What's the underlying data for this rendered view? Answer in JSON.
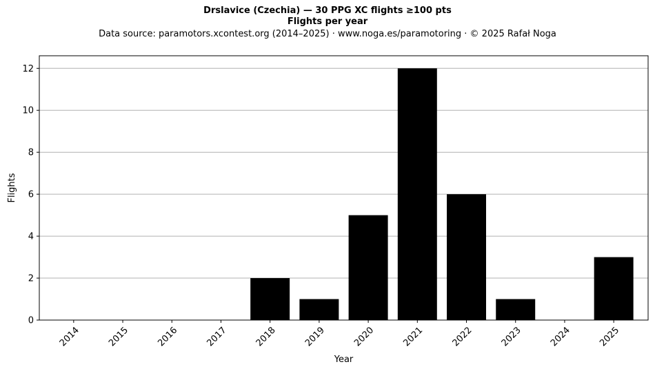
{
  "chart_data": {
    "type": "bar",
    "title": "Drslavice (Czechia)  —  30 PPG XC flights ≥100 pts",
    "subtitle": "Flights per year",
    "source_note": "Data source: paramotors.xcontest.org (2014–2025)  ·  www.noga.es/paramotoring  ·  © 2025 Rafał Noga",
    "xlabel": "Year",
    "ylabel": "Flights",
    "categories": [
      "2014",
      "2015",
      "2016",
      "2017",
      "2018",
      "2019",
      "2020",
      "2021",
      "2022",
      "2023",
      "2024",
      "2025"
    ],
    "values": [
      0,
      0,
      0,
      0,
      2,
      1,
      5,
      12,
      6,
      1,
      0,
      3
    ],
    "ylim": [
      0,
      12.6
    ],
    "yticks": [
      0,
      2,
      4,
      6,
      8,
      10,
      12
    ],
    "grid": "y",
    "bar_color": "#000000",
    "grid_color": "#b0b0b0",
    "legend": "none"
  }
}
